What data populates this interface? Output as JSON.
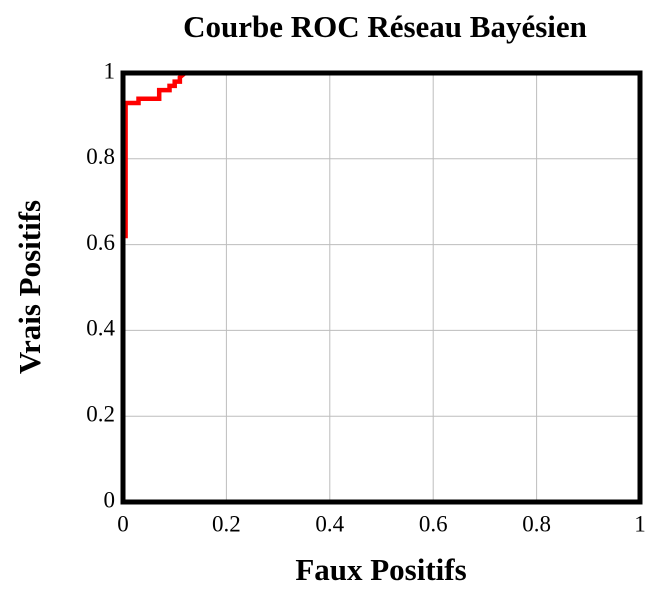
{
  "chart_data": {
    "type": "line",
    "title": "Courbe ROC Réseau Bayésien",
    "xlabel": "Faux Positifs",
    "ylabel": "Vrais Positifs",
    "x": [
      0,
      0,
      0.005,
      0.005,
      0.03,
      0.03,
      0.07,
      0.07,
      0.09,
      0.09,
      0.1,
      0.1,
      0.11,
      0.11,
      0.12,
      1
    ],
    "values": [
      0,
      0.62,
      0.62,
      0.93,
      0.93,
      0.94,
      0.94,
      0.96,
      0.96,
      0.97,
      0.97,
      0.98,
      0.98,
      0.99,
      1,
      1
    ],
    "color": "#ff0000",
    "xlim": [
      0,
      1
    ],
    "ylim": [
      0,
      1
    ],
    "xticks": [
      0,
      0.2,
      0.4,
      0.6,
      0.8,
      1
    ],
    "yticks": [
      0,
      0.2,
      0.4,
      0.6,
      0.8,
      1
    ],
    "grid": true
  }
}
